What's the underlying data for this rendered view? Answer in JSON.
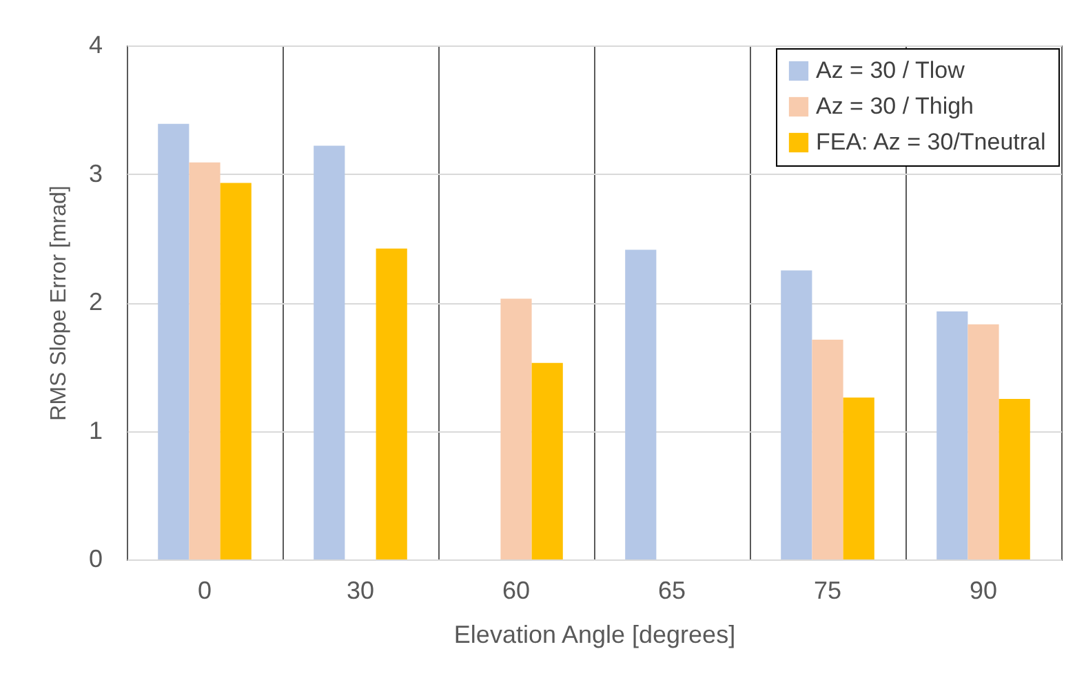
{
  "chart_data": {
    "type": "bar",
    "xlabel": "Elevation Angle [degrees]",
    "ylabel": "RMS Slope Error [mrad]",
    "categories": [
      "0",
      "30",
      "60",
      "65",
      "75",
      "90"
    ],
    "series": [
      {
        "name": "Az = 30 / Tlow",
        "color": "#b4c7e7",
        "values": [
          3.39,
          3.22,
          null,
          2.41,
          2.25,
          1.93
        ]
      },
      {
        "name": "Az = 30 / Thigh",
        "color": "#f8cbad",
        "values": [
          3.09,
          null,
          2.03,
          null,
          1.71,
          1.83
        ]
      },
      {
        "name": "FEA: Az = 30/Tneutral",
        "color": "#ffc000",
        "values": [
          2.93,
          2.42,
          1.53,
          null,
          1.26,
          1.25
        ]
      }
    ],
    "ylim": [
      0,
      4
    ],
    "yticks": [
      0,
      1,
      2,
      3,
      4
    ],
    "grid": true,
    "legend": "top right"
  }
}
